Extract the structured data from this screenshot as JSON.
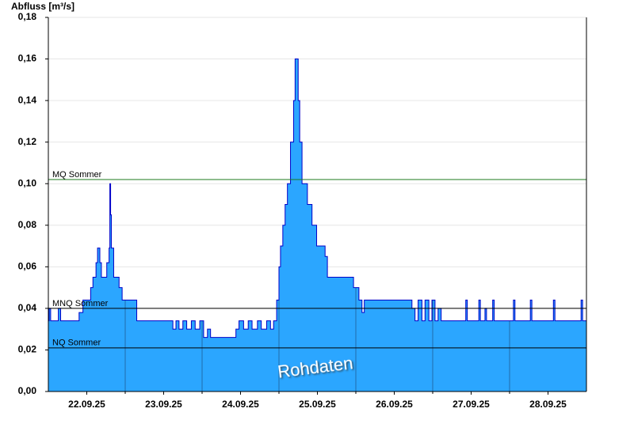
{
  "chart_data": {
    "type": "step-area",
    "y_label": "Abfluss [m³/s]",
    "annotation": "Rohdaten",
    "color": "#2ba6ff",
    "line_color": "#0000c8",
    "x": [
      22.0,
      22.01,
      22.03,
      22.13,
      22.16,
      22.4,
      22.45,
      22.55,
      22.58,
      22.62,
      22.64,
      22.67,
      22.69,
      22.76,
      22.79,
      22.8,
      22.81,
      22.82,
      22.85,
      22.92,
      22.96,
      23.15,
      23.62,
      23.66,
      23.7,
      23.75,
      23.8,
      23.86,
      23.91,
      23.97,
      24.02,
      24.07,
      24.11,
      24.44,
      24.48,
      24.54,
      24.6,
      24.65,
      24.72,
      24.77,
      24.84,
      24.89,
      24.93,
      24.97,
      25.0,
      25.02,
      25.05,
      25.08,
      25.11,
      25.15,
      25.19,
      25.21,
      25.25,
      25.27,
      25.3,
      25.37,
      25.43,
      25.49,
      25.6,
      25.63,
      25.97,
      26.04,
      26.08,
      26.11,
      26.73,
      26.77,
      26.81,
      26.86,
      26.9,
      26.95,
      26.99,
      27.03,
      27.07,
      27.11,
      27.43,
      27.45,
      27.6,
      27.62,
      27.68,
      27.7,
      27.78,
      27.8,
      28.05,
      28.07,
      28.27,
      28.29,
      28.57,
      28.59,
      28.93,
      28.95,
      29.0
    ],
    "values": [
      0.034,
      0.04,
      0.034,
      0.04,
      0.034,
      0.038,
      0.044,
      0.05,
      0.055,
      0.062,
      0.069,
      0.062,
      0.055,
      0.062,
      0.069,
      0.1,
      0.085,
      0.069,
      0.055,
      0.05,
      0.044,
      0.034,
      0.03,
      0.034,
      0.03,
      0.034,
      0.03,
      0.034,
      0.03,
      0.034,
      0.026,
      0.03,
      0.026,
      0.03,
      0.034,
      0.03,
      0.034,
      0.03,
      0.034,
      0.03,
      0.034,
      0.03,
      0.034,
      0.044,
      0.06,
      0.07,
      0.08,
      0.09,
      0.1,
      0.12,
      0.14,
      0.16,
      0.14,
      0.12,
      0.1,
      0.09,
      0.08,
      0.07,
      0.065,
      0.055,
      0.05,
      0.044,
      0.038,
      0.044,
      0.04,
      0.034,
      0.044,
      0.034,
      0.044,
      0.034,
      0.044,
      0.034,
      0.04,
      0.034,
      0.044,
      0.034,
      0.044,
      0.034,
      0.04,
      0.034,
      0.044,
      0.034,
      0.044,
      0.034,
      0.044,
      0.034,
      0.044,
      0.034,
      0.044,
      0.034,
      0.034
    ],
    "xlim": [
      22,
      29
    ],
    "xticks": [
      {
        "value": 22.5,
        "label": "22.09.25"
      },
      {
        "value": 23.5,
        "label": "23.09.25"
      },
      {
        "value": 24.5,
        "label": "24.09.25"
      },
      {
        "value": 25.5,
        "label": "25.09.25"
      },
      {
        "value": 26.5,
        "label": "26.09.25"
      },
      {
        "value": 27.5,
        "label": "27.09.25"
      },
      {
        "value": 28.5,
        "label": "28.09.25"
      }
    ],
    "xgrid": [
      23,
      24,
      25,
      26,
      27,
      28
    ],
    "ylim": [
      0,
      0.18
    ],
    "yticks": [
      {
        "value": 0,
        "label": "0,00"
      },
      {
        "value": 0.02,
        "label": "0,02"
      },
      {
        "value": 0.04,
        "label": "0,04"
      },
      {
        "value": 0.06,
        "label": "0,06"
      },
      {
        "value": 0.08,
        "label": "0,08"
      },
      {
        "value": 0.1,
        "label": "0,10"
      },
      {
        "value": 0.12,
        "label": "0,12"
      },
      {
        "value": 0.14,
        "label": "0,14"
      },
      {
        "value": 0.16,
        "label": "0,16"
      },
      {
        "value": 0.18,
        "label": "0,18"
      }
    ],
    "grid": true,
    "reference_lines": [
      {
        "label": "MQ Sommer",
        "value": 0.102,
        "color": "#1e7a1e"
      },
      {
        "label": "MNQ Sommer",
        "value": 0.04,
        "color": "#000000"
      },
      {
        "label": "NQ Sommer",
        "value": 0.021,
        "color": "#000000"
      }
    ]
  }
}
